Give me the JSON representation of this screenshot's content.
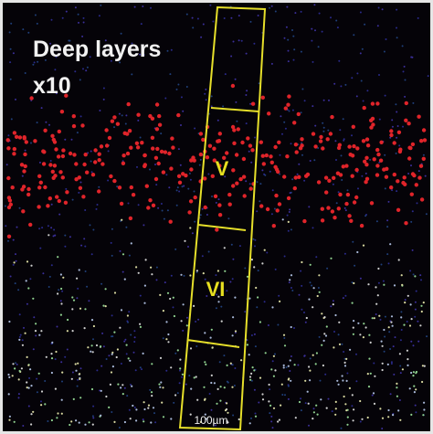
{
  "image": {
    "title": "Deep layers",
    "magnification": "x10",
    "layers": [
      {
        "label": "V"
      },
      {
        "label": "VI"
      }
    ],
    "scale_bar": "100µm"
  }
}
